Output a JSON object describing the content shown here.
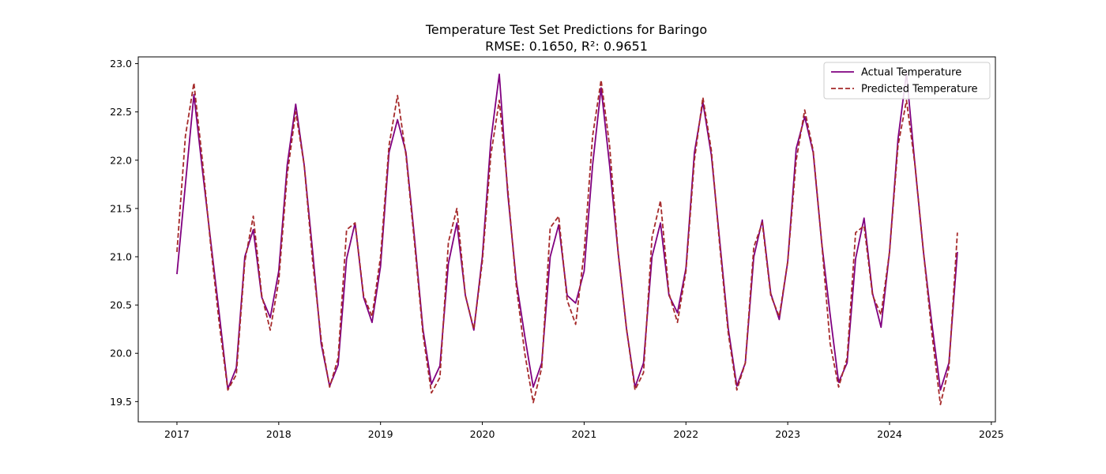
{
  "chart_data": {
    "type": "line",
    "title": "Temperature Test Set Predictions for Baringo",
    "subtitle": "RMSE: 0.1650, R²: 0.9651",
    "xlabel": "",
    "ylabel": "",
    "xlim": [
      2016.62,
      2025.04
    ],
    "ylim": [
      19.29,
      23.07
    ],
    "x_ticks": [
      "2017",
      "2018",
      "2019",
      "2020",
      "2021",
      "2022",
      "2023",
      "2024",
      "2025"
    ],
    "y_ticks": [
      "19.5",
      "20.0",
      "20.5",
      "21.0",
      "21.5",
      "22.0",
      "22.5",
      "23.0"
    ],
    "grid": false,
    "legend_position": "top-right",
    "x_start_year": 2017,
    "points_per_year": 12,
    "series": [
      {
        "name": "Actual Temperature",
        "color": "#800080",
        "style": "solid",
        "values": [
          20.82,
          21.75,
          22.68,
          21.9,
          21.15,
          20.4,
          19.63,
          19.85,
          21.0,
          21.28,
          20.58,
          20.37,
          20.85,
          21.95,
          22.58,
          21.95,
          21.05,
          20.1,
          19.66,
          19.88,
          20.98,
          21.35,
          20.58,
          20.32,
          20.9,
          22.08,
          22.42,
          22.08,
          21.2,
          20.25,
          19.68,
          19.87,
          20.93,
          21.35,
          20.6,
          20.24,
          21.0,
          22.2,
          22.89,
          21.65,
          20.75,
          20.18,
          19.65,
          19.9,
          21.0,
          21.33,
          20.6,
          20.52,
          20.85,
          21.95,
          22.75,
          21.95,
          21.05,
          20.25,
          19.65,
          19.9,
          21.0,
          21.35,
          20.6,
          20.42,
          20.88,
          22.08,
          22.6,
          22.05,
          21.15,
          20.25,
          19.66,
          19.9,
          21.0,
          21.38,
          20.62,
          20.35,
          20.95,
          22.12,
          22.45,
          22.08,
          21.15,
          20.4,
          19.7,
          19.9,
          20.98,
          21.4,
          20.62,
          20.27,
          21.05,
          22.22,
          22.9,
          21.95,
          21.05,
          20.3,
          19.62,
          19.9,
          21.05
        ]
      },
      {
        "name": "Predicted Temperature",
        "color": "#A52A2A",
        "style": "dashed",
        "values": [
          21.05,
          22.25,
          22.8,
          22.0,
          21.1,
          20.3,
          19.62,
          19.78,
          20.95,
          21.42,
          20.6,
          20.24,
          20.75,
          21.85,
          22.5,
          21.95,
          20.95,
          20.15,
          19.65,
          19.95,
          21.28,
          21.35,
          20.6,
          20.38,
          21.0,
          22.15,
          22.67,
          22.05,
          21.15,
          20.2,
          19.59,
          19.75,
          21.15,
          21.5,
          20.6,
          20.25,
          20.95,
          22.05,
          22.62,
          21.7,
          20.7,
          20.0,
          19.49,
          19.85,
          21.3,
          21.42,
          20.55,
          20.3,
          21.05,
          22.25,
          22.83,
          22.15,
          21.05,
          20.25,
          19.62,
          19.8,
          21.2,
          21.58,
          20.62,
          20.32,
          20.85,
          22.0,
          22.65,
          22.1,
          21.1,
          20.2,
          19.62,
          19.9,
          21.1,
          21.35,
          20.6,
          20.38,
          20.95,
          22.0,
          22.52,
          22.1,
          21.15,
          20.1,
          19.65,
          19.95,
          21.25,
          21.32,
          20.6,
          20.4,
          21.05,
          22.15,
          22.62,
          21.95,
          21.05,
          20.2,
          19.47,
          19.85,
          21.25
        ]
      }
    ]
  }
}
